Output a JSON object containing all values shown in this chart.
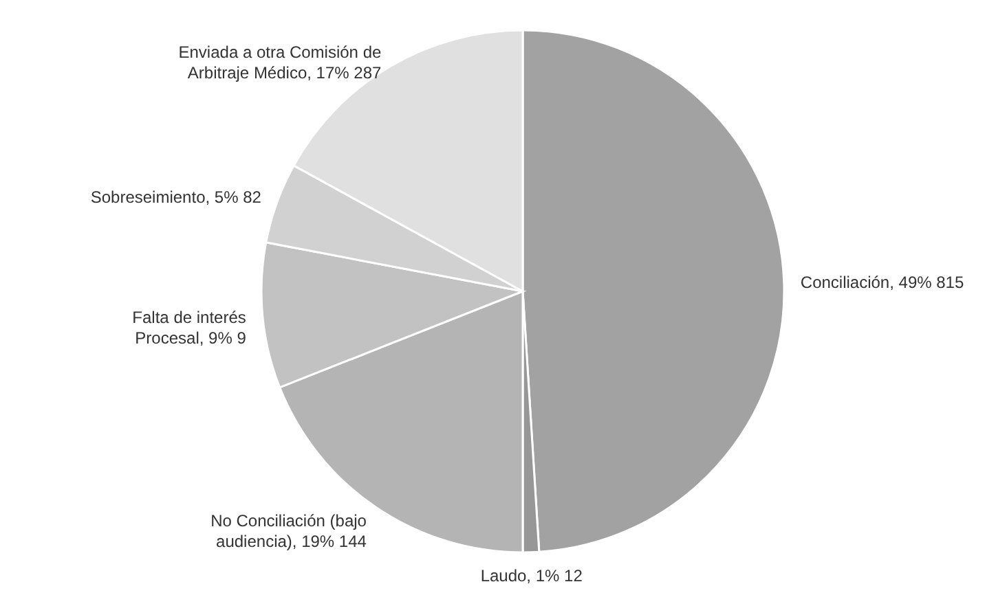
{
  "chart_data": {
    "type": "pie",
    "categories": [
      "Conciliación",
      "Laudo",
      "No Conciliación (bajo audiencia)",
      "Falta de interés Procesal",
      "Sobreseimiento",
      "Enviada a otra Comisión de Arbitraje Médico"
    ],
    "values": [
      49,
      1,
      19,
      9,
      5,
      17
    ],
    "colors": [
      "#a2a2a2",
      "#979797",
      "#b4b4b4",
      "#c2c2c2",
      "#d1d1d1",
      "#e0e0e0"
    ],
    "value_labels": [
      "49% 815",
      "1% 12",
      "19% 144",
      "9%  9",
      "5% 82",
      "17% 287"
    ]
  }
}
